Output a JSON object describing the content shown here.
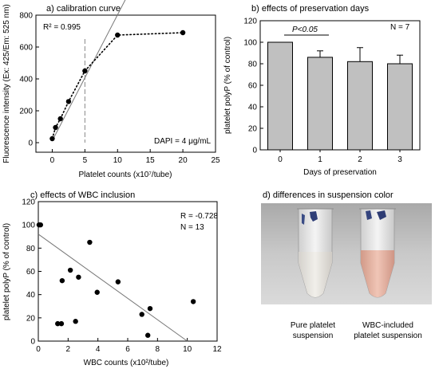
{
  "chart_data": [
    {
      "panel": "a",
      "type": "scatter",
      "title": "a) calibration curve",
      "xlabel": "Platelet counts (x10⁷/tube)",
      "ylabel": "Fluorescence intensity (Ex: 425/Em: 525 nm)",
      "xlim": [
        -2.5,
        25
      ],
      "ylim": [
        -60,
        800
      ],
      "xticks": [
        0,
        5,
        10,
        15,
        20,
        25
      ],
      "yticks": [
        0,
        200,
        400,
        600,
        800
      ],
      "annotations": [
        "R² = 0.995",
        "DAPI = 4 μg/mL"
      ],
      "points": [
        {
          "x": 0,
          "y": 25
        },
        {
          "x": 0.5,
          "y": 95
        },
        {
          "x": 1.25,
          "y": 150
        },
        {
          "x": 2.5,
          "y": 258
        },
        {
          "x": 5,
          "y": 450
        },
        {
          "x": 10,
          "y": 675
        },
        {
          "x": 20,
          "y": 690
        }
      ],
      "fit_line": [
        {
          "x": 0,
          "y": 12
        },
        {
          "x": 12.5,
          "y": 1000
        }
      ],
      "reference_x": 5
    },
    {
      "panel": "b",
      "type": "bar",
      "title": "b) effects of preservation days",
      "xlabel": "Days of preservation",
      "ylabel": "platelet polyP (% of control)",
      "ylim": [
        0,
        120
      ],
      "yticks": [
        0,
        20,
        40,
        60,
        80,
        100,
        120
      ],
      "categories": [
        "0",
        "1",
        "2",
        "3"
      ],
      "values": [
        100,
        86,
        82,
        80
      ],
      "errors": [
        0,
        6,
        13,
        8
      ],
      "annotations": [
        "P<0.05",
        "N = 7"
      ],
      "bar_color": "#c0c0c0"
    },
    {
      "panel": "c",
      "type": "scatter",
      "title": "c) effects of WBC inclusion",
      "xlabel": "WBC counts (x10²/tube)",
      "ylabel": "platelet polyP (% of control)",
      "xlim": [
        0,
        12
      ],
      "ylim": [
        0,
        120
      ],
      "xticks": [
        0,
        2,
        4,
        6,
        8,
        10,
        12
      ],
      "yticks": [
        0,
        20,
        40,
        60,
        80,
        100,
        120
      ],
      "annotations": [
        "R = -0.728",
        "N = 13"
      ],
      "points": [
        {
          "x": 0.05,
          "y": 100
        },
        {
          "x": 0.15,
          "y": 100
        },
        {
          "x": 1.3,
          "y": 15
        },
        {
          "x": 1.55,
          "y": 15
        },
        {
          "x": 1.6,
          "y": 52
        },
        {
          "x": 2.15,
          "y": 61
        },
        {
          "x": 2.5,
          "y": 17
        },
        {
          "x": 2.7,
          "y": 55
        },
        {
          "x": 3.45,
          "y": 85
        },
        {
          "x": 3.95,
          "y": 42
        },
        {
          "x": 5.35,
          "y": 51
        },
        {
          "x": 6.95,
          "y": 23
        },
        {
          "x": 7.35,
          "y": 5
        },
        {
          "x": 7.5,
          "y": 28
        },
        {
          "x": 10.4,
          "y": 34
        }
      ],
      "fit_line": [
        {
          "x": 0,
          "y": 92
        },
        {
          "x": 10,
          "y": 0
        }
      ]
    }
  ],
  "panel_d": {
    "title": "d) differences in suspension color",
    "left_caption": [
      "Pure platelet",
      "suspension"
    ],
    "right_caption": [
      "WBC-included",
      "platelet suspension"
    ]
  }
}
